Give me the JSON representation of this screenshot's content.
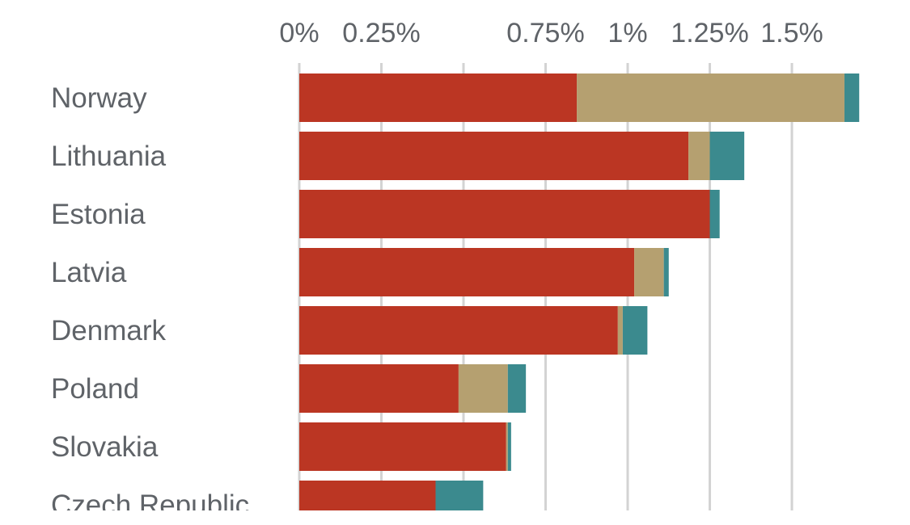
{
  "chart_data": {
    "type": "bar",
    "orientation": "horizontal",
    "stacked": true,
    "categories": [
      "Norway",
      "Lithuania",
      "Estonia",
      "Latvia",
      "Denmark",
      "Poland",
      "Slovakia",
      "Czech Republic"
    ],
    "series": [
      {
        "color": "#bb3623",
        "values": [
          0.845,
          1.185,
          1.25,
          1.02,
          0.97,
          0.485,
          0.63,
          0.415
        ]
      },
      {
        "color": "#b5a070",
        "values": [
          0.815,
          0.065,
          0.0,
          0.09,
          0.015,
          0.15,
          0.005,
          0.0
        ]
      },
      {
        "color": "#3b8a8e",
        "values": [
          0.045,
          0.105,
          0.03,
          0.015,
          0.075,
          0.055,
          0.01,
          0.145
        ]
      }
    ],
    "x_ticks": [
      {
        "value": 0,
        "label": "0%"
      },
      {
        "value": 0.25,
        "label": "0.25%"
      },
      {
        "value": 0.5,
        "label": ""
      },
      {
        "value": 0.75,
        "label": "0.75%"
      },
      {
        "value": 1.0,
        "label": "1%"
      },
      {
        "value": 1.25,
        "label": "1.25%"
      },
      {
        "value": 1.5,
        "label": "1.5%"
      }
    ],
    "xlim": [
      0,
      1.75
    ],
    "axis_position": "top",
    "grid": true,
    "legend": "none",
    "title": "",
    "xlabel": "",
    "ylabel": ""
  }
}
